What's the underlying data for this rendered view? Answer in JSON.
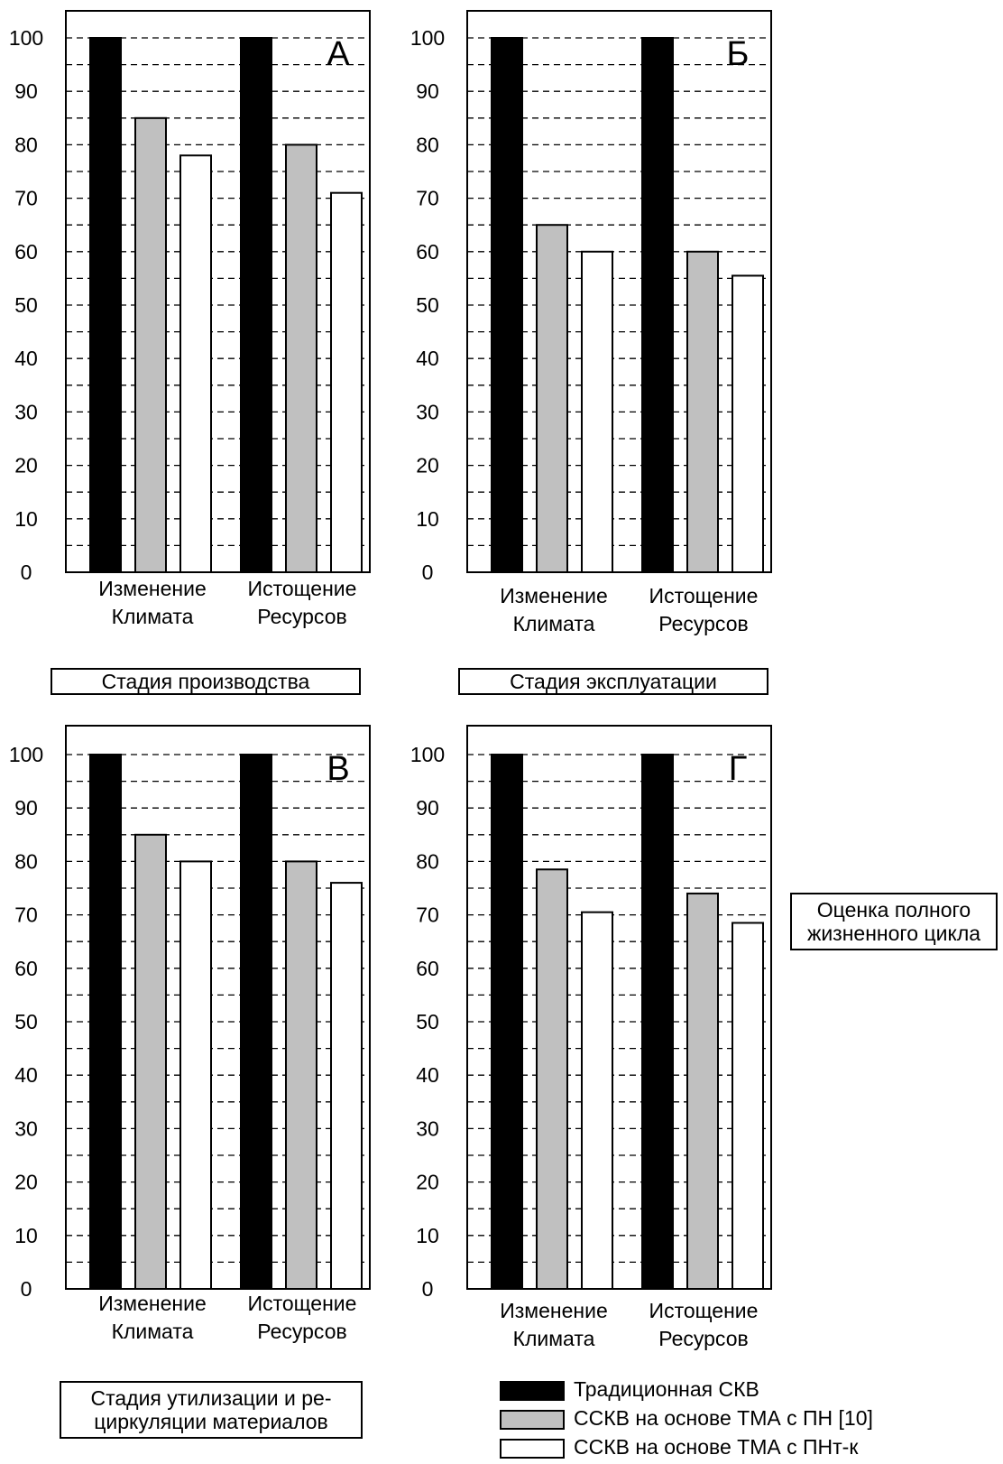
{
  "colors": {
    "black": "#000000",
    "gray": "#c0c0c0",
    "white": "#ffffff"
  },
  "y_ticks": [
    "0",
    "10",
    "20",
    "30",
    "40",
    "50",
    "60",
    "70",
    "80",
    "90",
    "100"
  ],
  "panels": {
    "a": {
      "letter": "А",
      "group1": [
        "Изменение",
        "Климата"
      ],
      "group2": [
        "Истощение",
        "Ресурсов"
      ]
    },
    "b": {
      "letter": "Б",
      "group1": [
        "Изменение",
        "Климата"
      ],
      "group2": [
        "Истощение",
        "Ресурсов"
      ]
    },
    "c": {
      "letter": "В",
      "group1": [
        "Изменение",
        "Климата"
      ],
      "group2": [
        "Истощение",
        "Ресурсов"
      ]
    },
    "d": {
      "letter": "Г",
      "group1": [
        "Изменение",
        "Климата"
      ],
      "group2": [
        "Истощение",
        "Ресурсов"
      ]
    }
  },
  "stages": {
    "production": "Стадия производства",
    "operation": "Стадия эксплуатации",
    "recycling_line1": "Стадия утилизации и ре-",
    "recycling_line2": "циркуляции материалов",
    "full_cycle_line1": "Оценка полного",
    "full_cycle_line2": "жизненного цикла"
  },
  "legend": {
    "traditional": "Традиционная СКВ",
    "tma_pn": "ССКВ на основе ТМА с ПН [10]",
    "tma_pntk": "ССКВ на основе ТМА с ПНт-к"
  },
  "chart_data": [
    {
      "type": "bar",
      "panel": "А",
      "categories": [
        "Изменение Климата",
        "Истощение Ресурсов"
      ],
      "ylim": [
        0,
        100
      ],
      "series": [
        {
          "name": "Традиционная СКВ",
          "color": "#000000",
          "values": [
            100,
            100
          ]
        },
        {
          "name": "ССКВ на основе ТМА с ПН [10]",
          "color": "#c0c0c0",
          "values": [
            85,
            80
          ]
        },
        {
          "name": "ССКВ на основе ТМА с ПНт-к",
          "color": "#ffffff",
          "values": [
            78,
            71
          ]
        }
      ]
    },
    {
      "type": "bar",
      "panel": "Б",
      "categories": [
        "Изменение Климата",
        "Истощение Ресурсов"
      ],
      "ylim": [
        0,
        100
      ],
      "series": [
        {
          "name": "Традиционная СКВ",
          "color": "#000000",
          "values": [
            100,
            100
          ]
        },
        {
          "name": "ССКВ на основе ТМА с ПН [10]",
          "color": "#c0c0c0",
          "values": [
            65,
            60
          ]
        },
        {
          "name": "ССКВ на основе ТМА с ПНт-к",
          "color": "#ffffff",
          "values": [
            60,
            55.5
          ]
        }
      ]
    },
    {
      "type": "bar",
      "panel": "В",
      "categories": [
        "Изменение Климата",
        "Истощение Ресурсов"
      ],
      "ylim": [
        0,
        100
      ],
      "series": [
        {
          "name": "Традиционная СКВ",
          "color": "#000000",
          "values": [
            100,
            100
          ]
        },
        {
          "name": "ССКВ на основе ТМА с ПН [10]",
          "color": "#c0c0c0",
          "values": [
            85,
            80
          ]
        },
        {
          "name": "ССКВ на основе ТМА с ПНт-к",
          "color": "#ffffff",
          "values": [
            80,
            76
          ]
        }
      ]
    },
    {
      "type": "bar",
      "panel": "Г",
      "categories": [
        "Изменение Климата",
        "Истощение Ресурсов"
      ],
      "ylim": [
        0,
        100
      ],
      "series": [
        {
          "name": "Традиционная СКВ",
          "color": "#000000",
          "values": [
            100,
            100
          ]
        },
        {
          "name": "ССКВ на основе ТМА с ПН [10]",
          "color": "#c0c0c0",
          "values": [
            78.5,
            74
          ]
        },
        {
          "name": "ССКВ на основе ТМА с ПНт-к",
          "color": "#ffffff",
          "values": [
            70.5,
            68.5
          ]
        }
      ]
    }
  ]
}
